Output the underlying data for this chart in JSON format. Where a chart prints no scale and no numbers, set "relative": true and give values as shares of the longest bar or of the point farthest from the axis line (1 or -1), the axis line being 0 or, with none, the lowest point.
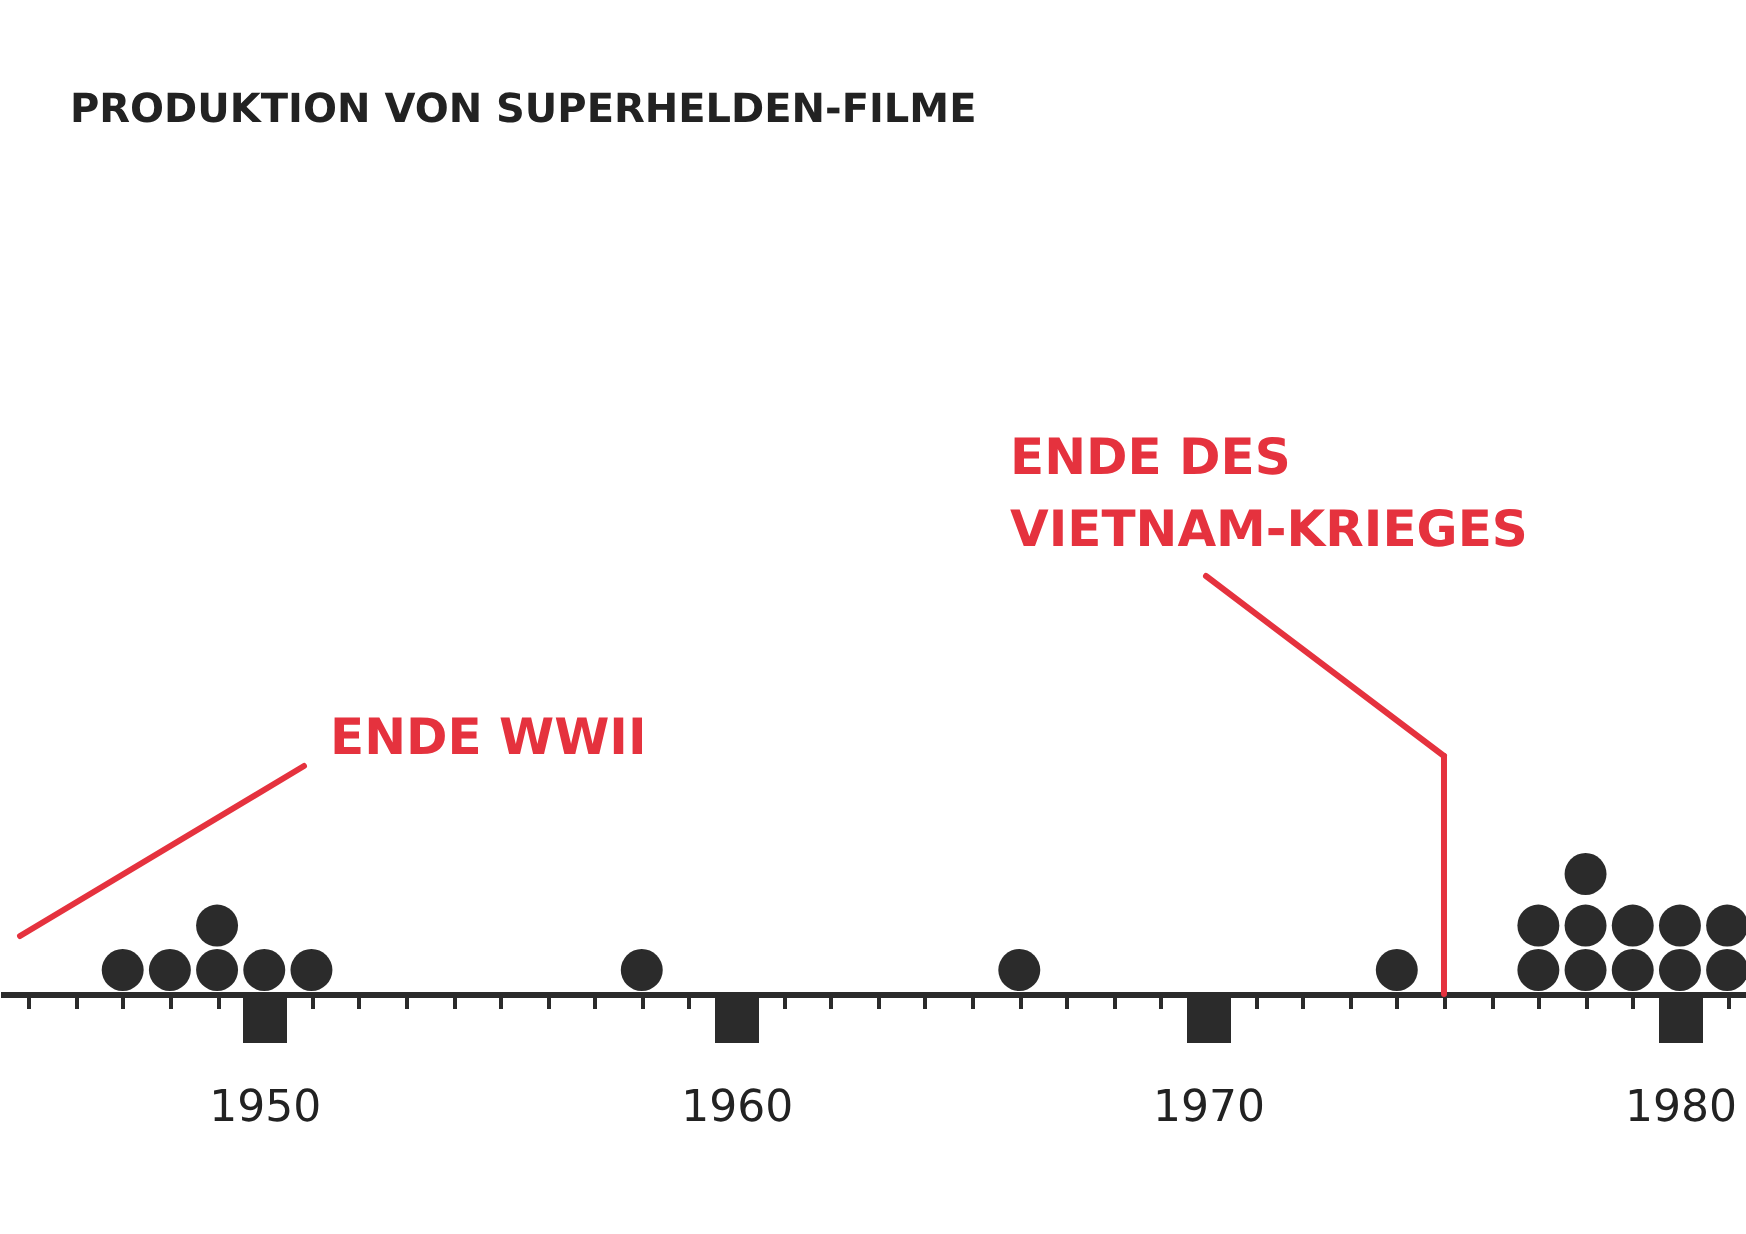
{
  "chart_data": {
    "type": "scatter",
    "relative": true,
    "title": "PRODUKTION VON SUPERHELDEN-FILME",
    "x": [
      1947,
      1948,
      1949,
      1949,
      1950,
      1951,
      1958,
      1966,
      1974,
      1977,
      1977,
      1978,
      1978,
      1978,
      1979,
      1979,
      1980,
      1980,
      1981,
      1981
    ],
    "series": [
      {
        "color": "#2b2b2b",
        "values": [
          0.2,
          0.2,
          0.2,
          0.57,
          0.2,
          0.2,
          0.2,
          0.2,
          0.2,
          0.2,
          0.57,
          0.2,
          0.57,
          1,
          0.2,
          0.57,
          0.2,
          0.57,
          0.2,
          0.57
        ]
      }
    ],
    "marker": "circle",
    "xlim": [
      1944.4,
      1981.4
    ],
    "xticks": [
      {
        "value": 1945,
        "label": null
      },
      {
        "value": 1946,
        "label": null
      },
      {
        "value": 1947,
        "label": null
      },
      {
        "value": 1948,
        "label": null
      },
      {
        "value": 1949,
        "label": null
      },
      1950,
      {
        "value": 1951,
        "label": null
      },
      {
        "value": 1952,
        "label": null
      },
      {
        "value": 1953,
        "label": null
      },
      {
        "value": 1954,
        "label": null
      },
      {
        "value": 1955,
        "label": null
      },
      {
        "value": 1956,
        "label": null
      },
      {
        "value": 1957,
        "label": null
      },
      {
        "value": 1958,
        "label": null
      },
      {
        "value": 1959,
        "label": null
      },
      1960,
      {
        "value": 1961,
        "label": null
      },
      {
        "value": 1962,
        "label": null
      },
      {
        "value": 1963,
        "label": null
      },
      {
        "value": 1964,
        "label": null
      },
      {
        "value": 1965,
        "label": null
      },
      {
        "value": 1966,
        "label": null
      },
      {
        "value": 1967,
        "label": null
      },
      {
        "value": 1968,
        "label": null
      },
      {
        "value": 1969,
        "label": null
      },
      1970,
      {
        "value": 1971,
        "label": null
      },
      {
        "value": 1972,
        "label": null
      },
      {
        "value": 1973,
        "label": null
      },
      {
        "value": 1974,
        "label": null
      },
      {
        "value": 1975,
        "label": null
      },
      {
        "value": 1976,
        "label": null
      },
      {
        "value": 1977,
        "label": null
      },
      {
        "value": 1978,
        "label": null
      },
      {
        "value": 1979,
        "label": null
      },
      1980,
      {
        "value": 1981,
        "label": null
      }
    ],
    "annotations": [
      "ENDE WWII"
    ],
    "ref_lines": [
      {
        "axis": "x",
        "value": 1975,
        "label": "ENDE DES VIETNAM-KRIEGES",
        "color": "#e5323e"
      }
    ]
  }
}
